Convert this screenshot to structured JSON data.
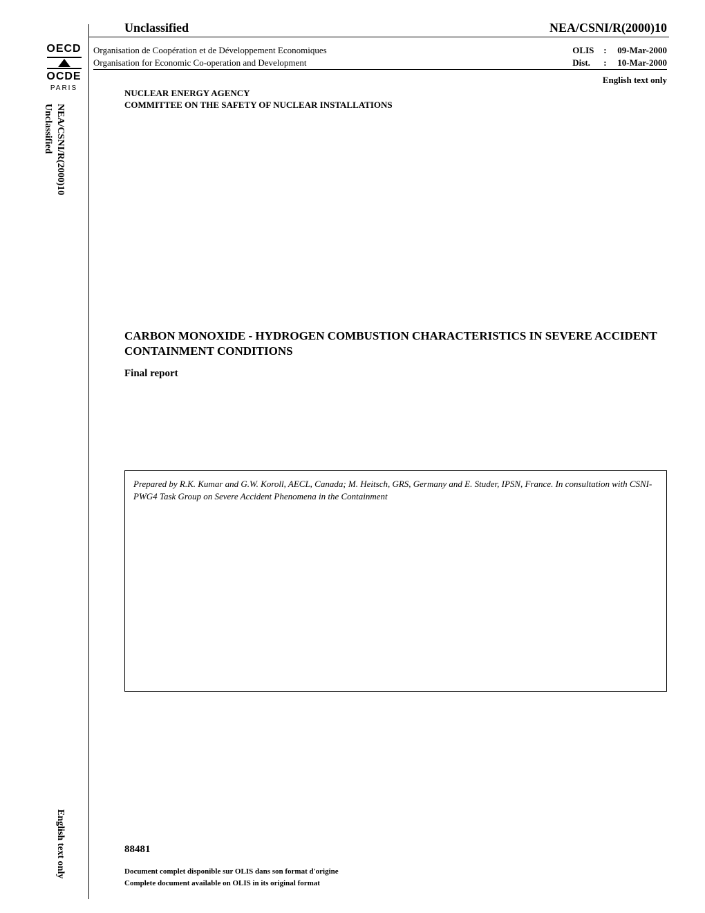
{
  "header": {
    "classification": "Unclassified",
    "doc_ref": "NEA/CSNI/R(2000)10",
    "org_fr": "Organisation de Coopération et de Développement Economiques",
    "org_en": "Organisation for Economic Co-operation and Development",
    "olis_label": "OLIS",
    "olis_date": "09-Mar-2000",
    "dist_label": "Dist.",
    "dist_date": "10-Mar-2000",
    "lang_note": "English text only",
    "agency_line1": "NUCLEAR ENERGY AGENCY",
    "agency_line2": "COMMITTEE ON THE SAFETY OF NUCLEAR INSTALLATIONS"
  },
  "logo": {
    "top_text": "OECD",
    "bottom_text": "OCDE",
    "city": "PARIS"
  },
  "sidebar": {
    "doc_ref": "NEA/CSNI/R(2000)10",
    "classification": "Unclassified",
    "lang_note": "English text only"
  },
  "document": {
    "title": "CARBON MONOXIDE - HYDROGEN COMBUSTION CHARACTERISTICS IN SEVERE ACCIDENT CONTAINMENT CONDITIONS",
    "report_type": "Final report",
    "prepared_by": "Prepared by R.K. Kumar and G.W. Koroll, AECL, Canada; M. Heitsch, GRS,  Germany and E. Studer, IPSN, France. In consultation with CSNI-PWG4 Task Group on Severe Accident Phenomena in the Containment"
  },
  "footer": {
    "number": "88481",
    "note_fr": "Document complet disponible sur OLIS dans son format d'origine",
    "note_en": "Complete document available on OLIS in its original format"
  },
  "colors": {
    "background": "#ffffff",
    "text": "#000000",
    "line": "#000000"
  },
  "typography": {
    "body_family": "Times New Roman",
    "logo_family": "Arial",
    "header_classification_size": 18,
    "org_size": 13,
    "title_size": 17,
    "footer_note_size": 11
  }
}
